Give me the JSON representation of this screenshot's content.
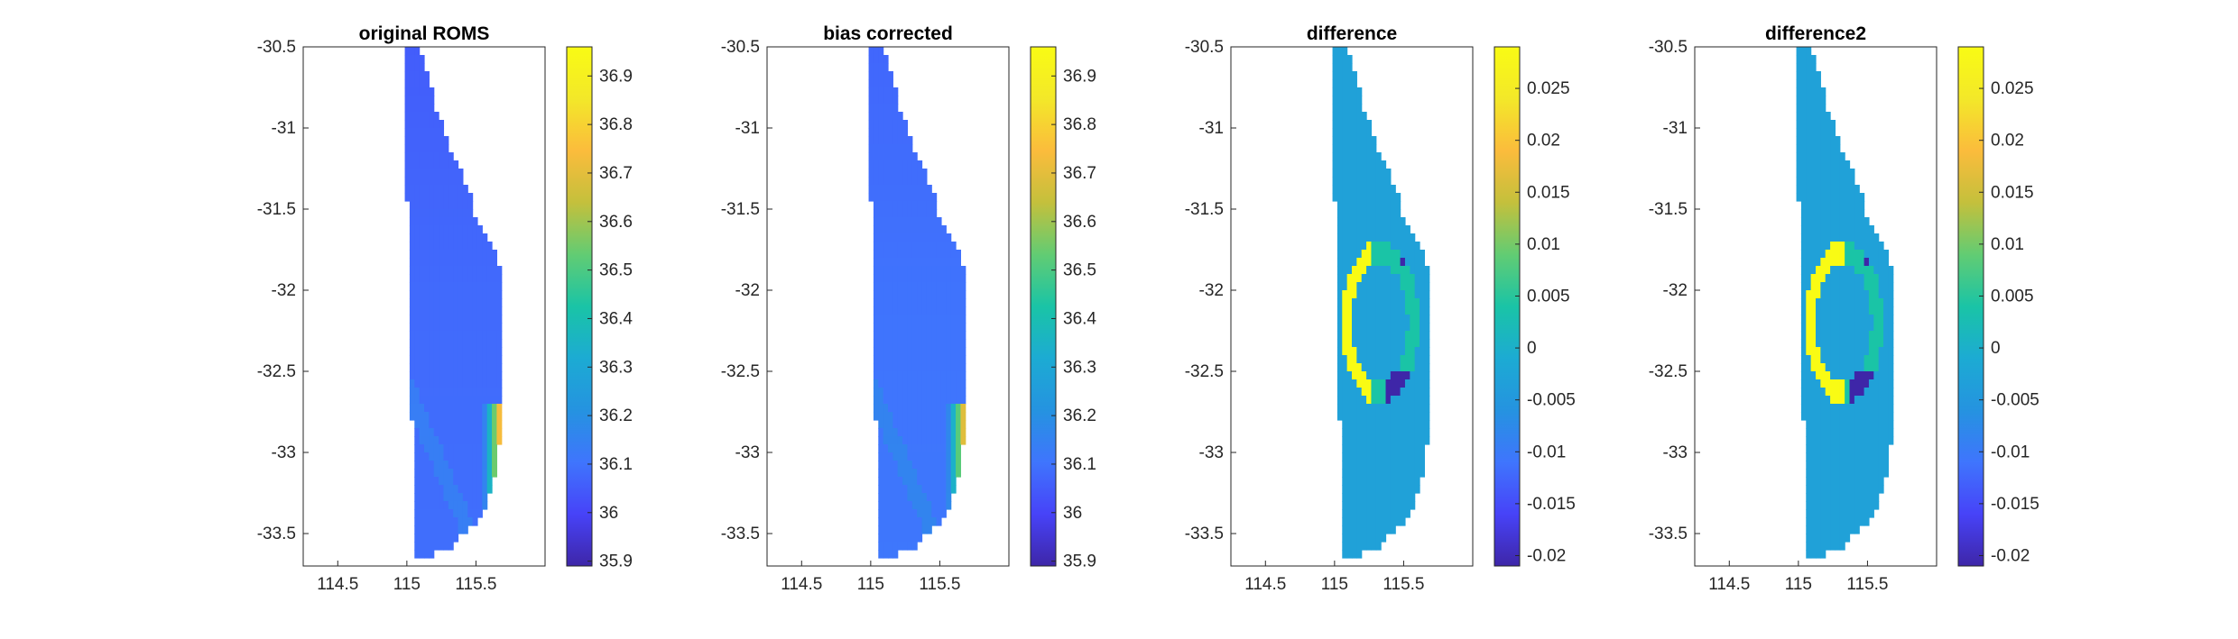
{
  "chart_data": [
    {
      "type": "heatmap",
      "title": "original ROMS",
      "xlabel": "",
      "ylabel": "",
      "xlim": [
        114.25,
        116.0
      ],
      "ylim": [
        -33.7,
        -30.5
      ],
      "xticks": [
        "114.5",
        "115",
        "115.5"
      ],
      "yticks": [
        "-30.5",
        "-31",
        "-31.5",
        "-32",
        "-32.5",
        "-33",
        "-33.5"
      ],
      "colorbar": {
        "range": [
          35.89,
          36.96
        ],
        "ticks": [
          "35.9",
          "36",
          "36.1",
          "36.2",
          "36.3",
          "36.4",
          "36.5",
          "36.6",
          "36.7",
          "36.8",
          "36.9"
        ]
      },
      "field": {
        "base_value": 36.08,
        "nearshore_high_value": 36.8,
        "nearshore_lat_range": [
          -33.4,
          -32.7
        ]
      }
    },
    {
      "type": "heatmap",
      "title": "bias corrected",
      "xlabel": "",
      "ylabel": "",
      "xlim": [
        114.25,
        116.0
      ],
      "ylim": [
        -33.7,
        -30.5
      ],
      "xticks": [
        "114.5",
        "115",
        "115.5"
      ],
      "yticks": [
        "-30.5",
        "-31",
        "-31.5",
        "-32",
        "-32.5",
        "-33",
        "-33.5"
      ],
      "colorbar": {
        "range": [
          35.89,
          36.96
        ],
        "ticks": [
          "35.9",
          "36",
          "36.1",
          "36.2",
          "36.3",
          "36.4",
          "36.5",
          "36.6",
          "36.7",
          "36.8",
          "36.9"
        ]
      },
      "field": {
        "base_value": 36.1,
        "nearshore_high_value": 36.75,
        "nearshore_lat_range": [
          -33.4,
          -32.7
        ]
      }
    },
    {
      "type": "heatmap",
      "title": "difference",
      "xlabel": "",
      "ylabel": "",
      "xlim": [
        114.25,
        116.0
      ],
      "ylim": [
        -33.7,
        -30.5
      ],
      "xticks": [
        "114.5",
        "115",
        "115.5"
      ],
      "yticks": [
        "-30.5",
        "-31",
        "-31.5",
        "-32",
        "-32.5",
        "-33",
        "-33.5"
      ],
      "colorbar": {
        "range": [
          -0.021,
          0.029
        ],
        "ticks": [
          "-0.02",
          "-0.015",
          "-0.01",
          "-0.005",
          "0",
          "0.005",
          "0.01",
          "0.015",
          "0.02",
          "0.025"
        ]
      },
      "field": {
        "base_value": -0.003,
        "high_value": 0.029,
        "low_value": -0.021,
        "mid_value": 0.004
      }
    },
    {
      "type": "heatmap",
      "title": "difference2",
      "xlabel": "",
      "ylabel": "",
      "xlim": [
        114.25,
        116.0
      ],
      "ylim": [
        -33.7,
        -30.5
      ],
      "xticks": [
        "114.5",
        "115",
        "115.5"
      ],
      "yticks": [
        "-30.5",
        "-31",
        "-31.5",
        "-32",
        "-32.5",
        "-33",
        "-33.5"
      ],
      "colorbar": {
        "range": [
          -0.021,
          0.029
        ],
        "ticks": [
          "-0.02",
          "-0.015",
          "-0.01",
          "-0.005",
          "0",
          "0.005",
          "0.01",
          "0.015",
          "0.02",
          "0.025"
        ]
      },
      "field": {
        "base_value": -0.003,
        "high_value": 0.029,
        "low_value": -0.021,
        "mid_value": 0.004
      }
    }
  ],
  "coastline": [
    [
      115.0,
      -30.5
    ],
    [
      115.1,
      -30.5
    ],
    [
      115.2,
      -30.85
    ],
    [
      115.3,
      -31.1
    ],
    [
      115.45,
      -31.4
    ],
    [
      115.5,
      -31.55
    ],
    [
      115.6,
      -31.7
    ],
    [
      115.7,
      -31.9
    ],
    [
      115.7,
      -32.5
    ],
    [
      115.7,
      -32.7
    ],
    [
      115.65,
      -33.1
    ],
    [
      115.55,
      -33.4
    ],
    [
      115.4,
      -33.5
    ],
    [
      115.3,
      -33.6
    ],
    [
      115.1,
      -33.65
    ],
    [
      115.05,
      -33.65
    ],
    [
      115.05,
      -33.3
    ],
    [
      115.05,
      -33.0
    ],
    [
      115.03,
      -32.7
    ],
    [
      115.02,
      -32.2
    ],
    [
      115.02,
      -31.8
    ],
    [
      115.0,
      -31.4
    ],
    [
      115.0,
      -30.5
    ]
  ],
  "colormap": [
    "#3e26a8",
    "#4743f8",
    "#3f75fd",
    "#2593e0",
    "#1cabd3",
    "#1ac4a6",
    "#62cc73",
    "#c4c03c",
    "#fbbc3c",
    "#f3e829",
    "#f9fb14"
  ]
}
